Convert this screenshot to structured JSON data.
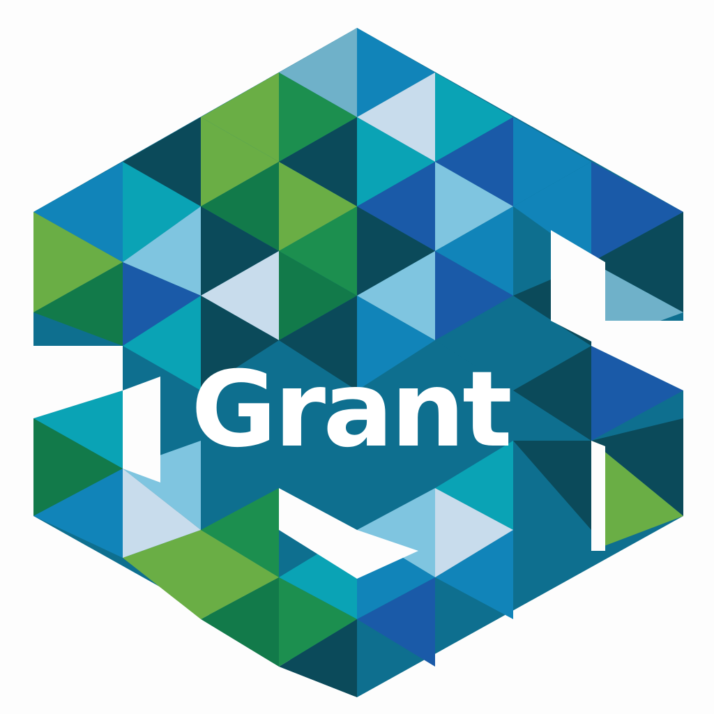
{
  "logo": {
    "wordmark": "Grant",
    "background_color": "#fdfdfd",
    "wordmark_color": "#ffffff",
    "palette": [
      "#0b4a5a",
      "#0e6f8f",
      "#1184b9",
      "#1a5aa8",
      "#0aa3b5",
      "#7fc5e0",
      "#c8dcec",
      "#127a4a",
      "#1c8f4f",
      "#6aae45"
    ]
  }
}
